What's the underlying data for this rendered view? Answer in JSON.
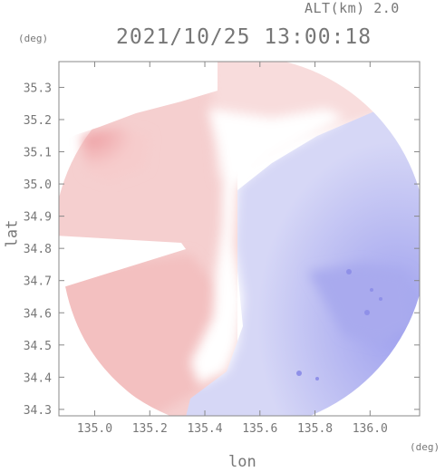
{
  "header": {
    "altitude_label": "ALT(km) 2.0",
    "timestamp": "2021/10/25 13:00:18"
  },
  "axes": {
    "y_unit": "(deg)",
    "x_unit": "(deg)",
    "y_label": "lat",
    "x_label": "lon",
    "x_ticks": [
      "135.0",
      "135.2",
      "135.4",
      "135.6",
      "135.8",
      "136.0"
    ],
    "y_ticks": [
      "35.3",
      "35.2",
      "35.1",
      "35.0",
      "34.9",
      "34.8",
      "34.7",
      "34.6",
      "34.5",
      "34.4",
      "34.3"
    ]
  },
  "colors": {
    "frame": "#888888",
    "positive": "#f3c3c3",
    "positive_strong": "#ee9ea2",
    "zero": "#ffffff",
    "negative": "#d4d5f5",
    "negative_strong": "#a8a8ee"
  },
  "chart_data": {
    "type": "heatmap",
    "title": "2021/10/25 13:00:18",
    "xlabel": "lon",
    "ylabel": "lat",
    "xlim": [
      134.87,
      136.18
    ],
    "ylim": [
      34.28,
      35.38
    ],
    "grid": false,
    "legend": "none"
  }
}
